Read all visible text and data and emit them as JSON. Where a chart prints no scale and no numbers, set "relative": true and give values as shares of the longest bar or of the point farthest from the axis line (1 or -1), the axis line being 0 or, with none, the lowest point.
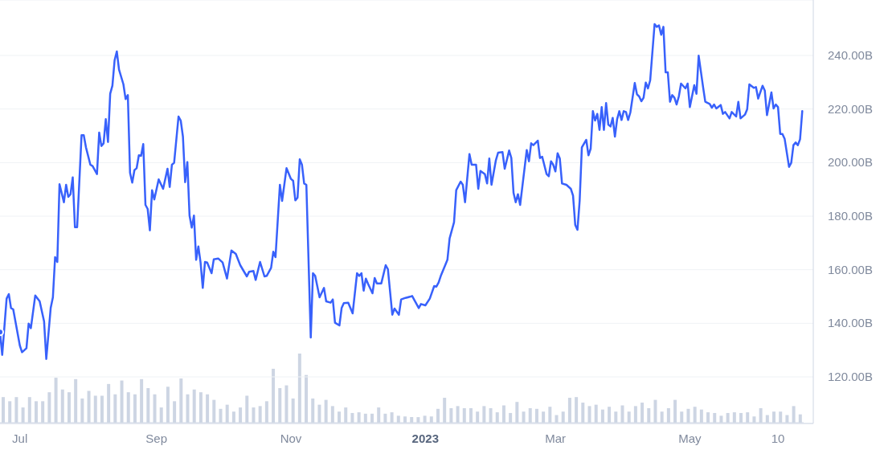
{
  "chart_data": [
    {
      "type": "line",
      "color": "#3861fb",
      "grid": "y",
      "marker": "none",
      "line_style": "solid",
      "xlim": [
        "2022-06-22",
        "2023-06-26"
      ],
      "ylim": [
        102.6,
        260.7
      ],
      "xticks": [
        {
          "value": "2022-07-01",
          "label": "Jul"
        },
        {
          "value": "2022-09-01",
          "label": "Sep"
        },
        {
          "value": "2022-11-01",
          "label": "Nov"
        },
        {
          "value": "2023-01-01",
          "label": "2023"
        },
        {
          "value": "2023-03-01",
          "label": "Mar"
        },
        {
          "value": "2023-05-01",
          "label": "May"
        },
        {
          "value": "2023-06-10",
          "label": "10"
        }
      ],
      "yticks": [
        {
          "value": 120,
          "label": "120.00B"
        },
        {
          "value": 140,
          "label": "140.00B"
        },
        {
          "value": 160,
          "label": "160.00B"
        },
        {
          "value": 180,
          "label": "180.00B"
        },
        {
          "value": 200,
          "label": "200.00B"
        },
        {
          "value": 220,
          "label": "220.00B"
        },
        {
          "value": 240,
          "label": "240.00B"
        }
      ],
      "x": [
        "2022-06-22",
        "2022-06-23",
        "2022-06-25",
        "2022-06-26",
        "2022-06-27",
        "2022-06-28",
        "2022-07-01",
        "2022-07-02",
        "2022-07-04",
        "2022-07-05",
        "2022-07-06",
        "2022-07-08",
        "2022-07-10",
        "2022-07-12",
        "2022-07-13",
        "2022-07-15",
        "2022-07-16",
        "2022-07-17",
        "2022-07-18",
        "2022-07-19",
        "2022-07-21",
        "2022-07-22",
        "2022-07-23",
        "2022-07-24",
        "2022-07-25",
        "2022-07-26",
        "2022-07-27",
        "2022-07-29",
        "2022-07-30",
        "2022-07-31",
        "2022-08-02",
        "2022-08-03",
        "2022-08-05",
        "2022-08-06",
        "2022-08-07",
        "2022-08-08",
        "2022-08-09",
        "2022-08-10",
        "2022-08-11",
        "2022-08-12",
        "2022-08-13",
        "2022-08-14",
        "2022-08-15",
        "2022-08-17",
        "2022-08-18",
        "2022-08-19",
        "2022-08-20",
        "2022-08-21",
        "2022-08-22",
        "2022-08-23",
        "2022-08-24",
        "2022-08-25",
        "2022-08-26",
        "2022-08-27",
        "2022-08-28",
        "2022-08-29",
        "2022-08-30",
        "2022-08-31",
        "2022-09-02",
        "2022-09-04",
        "2022-09-06",
        "2022-09-07",
        "2022-09-08",
        "2022-09-09",
        "2022-09-11",
        "2022-09-12",
        "2022-09-13",
        "2022-09-14",
        "2022-09-15",
        "2022-09-16",
        "2022-09-17",
        "2022-09-18",
        "2022-09-19",
        "2022-09-20",
        "2022-09-21",
        "2022-09-22",
        "2022-09-23",
        "2022-09-24",
        "2022-09-26",
        "2022-09-27",
        "2022-09-29",
        "2022-10-01",
        "2022-10-02",
        "2022-10-03",
        "2022-10-05",
        "2022-10-07",
        "2022-10-09",
        "2022-10-12",
        "2022-10-13",
        "2022-10-15",
        "2022-10-16",
        "2022-10-18",
        "2022-10-20",
        "2022-10-21",
        "2022-10-23",
        "2022-10-24",
        "2022-10-25",
        "2022-10-27",
        "2022-10-28",
        "2022-10-30",
        "2022-11-01",
        "2022-11-02",
        "2022-11-03",
        "2022-11-04",
        "2022-11-05",
        "2022-11-06",
        "2022-11-07",
        "2022-11-08",
        "2022-11-10",
        "2022-11-11",
        "2022-11-12",
        "2022-11-14",
        "2022-11-16",
        "2022-11-17",
        "2022-11-19",
        "2022-11-20",
        "2022-11-21",
        "2022-11-23",
        "2022-11-24",
        "2022-11-25",
        "2022-11-27",
        "2022-11-29",
        "2022-12-01",
        "2022-12-02",
        "2022-12-03",
        "2022-12-04",
        "2022-12-05",
        "2022-12-06",
        "2022-12-08",
        "2022-12-09",
        "2022-12-10",
        "2022-12-12",
        "2022-12-14",
        "2022-12-15",
        "2022-12-17",
        "2022-12-18",
        "2022-12-20",
        "2022-12-21",
        "2022-12-23",
        "2022-12-25",
        "2022-12-26",
        "2022-12-29",
        "2022-12-30",
        "2023-01-01",
        "2023-01-03",
        "2023-01-05",
        "2023-01-06",
        "2023-01-07",
        "2023-01-08",
        "2023-01-10",
        "2023-01-11",
        "2023-01-12",
        "2023-01-14",
        "2023-01-15",
        "2023-01-17",
        "2023-01-18",
        "2023-01-19",
        "2023-01-21",
        "2023-01-22",
        "2023-01-24",
        "2023-01-25",
        "2023-01-26",
        "2023-01-28",
        "2023-01-29",
        "2023-01-30",
        "2023-01-31",
        "2023-02-02",
        "2023-02-03",
        "2023-02-05",
        "2023-02-06",
        "2023-02-08",
        "2023-02-09",
        "2023-02-10",
        "2023-02-11",
        "2023-02-12",
        "2023-02-13",
        "2023-02-16",
        "2023-02-17",
        "2023-02-18",
        "2023-02-19",
        "2023-02-21",
        "2023-02-22",
        "2023-02-23",
        "2023-02-25",
        "2023-02-26",
        "2023-02-27",
        "2023-02-28",
        "2023-03-01",
        "2023-03-02",
        "2023-03-03",
        "2023-03-04",
        "2023-03-06",
        "2023-03-08",
        "2023-03-09",
        "2023-03-10",
        "2023-03-11",
        "2023-03-12",
        "2023-03-13",
        "2023-03-15",
        "2023-03-16",
        "2023-03-17",
        "2023-03-18",
        "2023-03-19",
        "2023-03-20",
        "2023-03-21",
        "2023-03-22",
        "2023-03-23",
        "2023-03-24",
        "2023-03-25",
        "2023-03-26",
        "2023-03-27",
        "2023-03-28",
        "2023-03-29",
        "2023-03-30",
        "2023-03-31",
        "2023-04-01",
        "2023-04-02",
        "2023-04-03",
        "2023-04-04",
        "2023-04-06",
        "2023-04-07",
        "2023-04-08",
        "2023-04-09",
        "2023-04-10",
        "2023-04-11",
        "2023-04-12",
        "2023-04-13",
        "2023-04-15",
        "2023-04-16",
        "2023-04-17",
        "2023-04-18",
        "2023-04-19",
        "2023-04-20",
        "2023-04-21",
        "2023-04-22",
        "2023-04-23",
        "2023-04-24",
        "2023-04-25",
        "2023-04-26",
        "2023-04-27",
        "2023-04-29",
        "2023-04-30",
        "2023-05-01",
        "2023-05-03",
        "2023-05-04",
        "2023-05-05",
        "2023-05-07",
        "2023-05-08",
        "2023-05-10",
        "2023-05-11",
        "2023-05-12",
        "2023-05-13",
        "2023-05-15",
        "2023-05-16",
        "2023-05-17",
        "2023-05-19",
        "2023-05-20",
        "2023-05-22",
        "2023-05-23",
        "2023-05-24",
        "2023-05-26",
        "2023-05-27",
        "2023-05-28",
        "2023-05-30",
        "2023-05-31",
        "2023-06-01",
        "2023-06-03",
        "2023-06-04",
        "2023-06-05",
        "2023-06-07",
        "2023-06-08",
        "2023-06-09",
        "2023-06-10",
        "2023-06-11",
        "2023-06-12",
        "2023-06-13",
        "2023-06-15",
        "2023-06-16",
        "2023-06-17",
        "2023-06-18",
        "2023-06-19",
        "2023-06-20",
        "2023-06-21"
      ],
      "values": [
        136.7,
        128.2,
        149.2,
        150.9,
        145.7,
        145.2,
        131.7,
        129.2,
        130.7,
        139.9,
        138.2,
        150.4,
        148.2,
        140.7,
        126.7,
        145.7,
        149.7,
        164.7,
        162.9,
        191.9,
        185.2,
        191.7,
        187.2,
        188.2,
        194.5,
        175.9,
        175.9,
        210.2,
        210.2,
        205.7,
        199.2,
        198.7,
        195.7,
        211.2,
        206.2,
        207.2,
        216.2,
        207.7,
        225.7,
        228.7,
        238.2,
        241.5,
        234.7,
        229.2,
        223.7,
        225.2,
        196.2,
        192.5,
        197.2,
        197.9,
        202.7,
        202.5,
        206.9,
        184.2,
        182.7,
        174.7,
        189.7,
        186.2,
        193.7,
        190.2,
        197.7,
        190.9,
        199.2,
        199.9,
        217.2,
        215.7,
        209.7,
        192.7,
        200.2,
        180.2,
        175.7,
        180.2,
        163.7,
        168.7,
        162.7,
        153.2,
        162.9,
        162.7,
        158.7,
        163.9,
        164.2,
        162.7,
        159.7,
        156.7,
        167.2,
        165.9,
        161.7,
        157.5,
        159.2,
        159.5,
        156.2,
        162.9,
        157.5,
        157.7,
        160.7,
        166.7,
        164.7,
        191.7,
        185.7,
        197.9,
        193.9,
        193.2,
        185.9,
        186.9,
        201.2,
        199.2,
        192.2,
        191.7,
        134.7,
        158.7,
        157.7,
        149.7,
        153.2,
        148.2,
        147.7,
        148.9,
        140.2,
        139.2,
        145.7,
        147.5,
        147.7,
        143.7,
        158.7,
        157.7,
        158.7,
        152.2,
        156.7,
        154.7,
        151.2,
        156.9,
        154.9,
        154.9,
        161.7,
        160.2,
        143.2,
        145.5,
        143.2,
        148.9,
        149.5,
        149.9,
        150.2,
        145.7,
        147.2,
        146.7,
        149.2,
        153.9,
        153.7,
        155.2,
        157.7,
        161.7,
        163.7,
        171.7,
        177.7,
        189.7,
        192.9,
        191.7,
        185.2,
        203.2,
        199.2,
        199.2,
        190.2,
        196.9,
        195.7,
        192.2,
        201.5,
        191.7,
        200.9,
        203.7,
        203.9,
        197.7,
        204.5,
        201.7,
        188.7,
        185.2,
        188.2,
        184.2,
        204.7,
        200.5,
        207.2,
        206.5,
        208.2,
        201.7,
        202.2,
        195.7,
        194.9,
        200.5,
        199.2,
        196.7,
        203.5,
        201.5,
        192.2,
        191.7,
        190.2,
        187.7,
        176.7,
        174.9,
        185.7,
        205.7,
        208.5,
        202.7,
        205.2,
        219.2,
        215.7,
        218.2,
        212.2,
        220.7,
        212.2,
        222.2,
        214.2,
        213.5,
        216.7,
        209.7,
        216.2,
        219.2,
        215.9,
        219.2,
        218.9,
        215.9,
        218.7,
        229.7,
        225.5,
        224.7,
        222.9,
        224.2,
        229.9,
        227.7,
        230.7,
        251.7,
        250.7,
        251.2,
        247.7,
        250.7,
        233.7,
        233.7,
        222.7,
        225.2,
        224.2,
        221.7,
        224.7,
        229.5,
        227.7,
        229.5,
        220.7,
        228.9,
        225.7,
        239.9,
        228.2,
        222.7,
        221.9,
        220.5,
        221.7,
        220.2,
        221.5,
        218.2,
        218.9,
        216.5,
        218.9,
        217.2,
        222.7,
        216.5,
        217.9,
        219.9,
        229.2,
        227.9,
        228.2,
        223.9,
        228.7,
        226.9,
        217.7,
        226.2,
        220.2,
        221.7,
        220.7,
        210.7,
        210.7,
        208.9,
        198.4,
        199.9,
        206.5,
        207.5,
        206.5,
        208.7,
        219.2
      ]
    },
    {
      "type": "bar",
      "relative": true,
      "color": "#cdd5e3",
      "categories": [
        null,
        null,
        null,
        null,
        null,
        null,
        null,
        null,
        null,
        null,
        null,
        null,
        null,
        null,
        null,
        null,
        null,
        null,
        null,
        null,
        null,
        null,
        null,
        null,
        null,
        null,
        null,
        null,
        null,
        null,
        null,
        null,
        null,
        null,
        null,
        null,
        null,
        null,
        null,
        null,
        null,
        null,
        null,
        null,
        null,
        null,
        null,
        null,
        null,
        null,
        null,
        null,
        null,
        null,
        null,
        null,
        null,
        null,
        null,
        null,
        null,
        null,
        null,
        null,
        null,
        null,
        null,
        null,
        null,
        null,
        null,
        null,
        null,
        null,
        null,
        null,
        null,
        null,
        null,
        null,
        null,
        null,
        null,
        null,
        null,
        null,
        null,
        null,
        null,
        null,
        null,
        null,
        null,
        null,
        null,
        null,
        null,
        null,
        null,
        null,
        null,
        null,
        null,
        null,
        null,
        null,
        null,
        null,
        null,
        null,
        null,
        null,
        null,
        null,
        null,
        null,
        null,
        null,
        null,
        null,
        null,
        null
      ],
      "values": [
        0.37,
        0.31,
        0.37,
        0.22,
        0.37,
        0.31,
        0.31,
        0.44,
        0.65,
        0.48,
        0.44,
        0.63,
        0.35,
        0.46,
        0.39,
        0.39,
        0.56,
        0.41,
        0.61,
        0.44,
        0.41,
        0.63,
        0.5,
        0.41,
        0.22,
        0.52,
        0.31,
        0.64,
        0.41,
        0.48,
        0.44,
        0.41,
        0.33,
        0.2,
        0.26,
        0.16,
        0.22,
        0.39,
        0.22,
        0.24,
        0.31,
        0.78,
        0.5,
        0.54,
        0.35,
        1,
        0.69,
        0.35,
        0.26,
        0.33,
        0.24,
        0.16,
        0.22,
        0.14,
        0.15,
        0.13,
        0.13,
        0.22,
        0.13,
        0.15,
        0.1,
        0.09,
        0.08,
        0.08,
        0.1,
        0.09,
        0.2,
        0.36,
        0.21,
        0.24,
        0.21,
        0.21,
        0.16,
        0.24,
        0.21,
        0.15,
        0.25,
        0.14,
        0.3,
        0.16,
        0.21,
        0.2,
        0.16,
        0.23,
        0.11,
        0.16,
        0.36,
        0.37,
        0.29,
        0.24,
        0.26,
        0.19,
        0.23,
        0.16,
        0.25,
        0.16,
        0.24,
        0.29,
        0.21,
        0.33,
        0.16,
        0.21,
        0.33,
        0.16,
        0.2,
        0.23,
        0.19,
        0.15,
        0.14,
        0.1,
        0.14,
        0.15,
        0.14,
        0.15,
        0.09,
        0.21,
        0.11,
        0.16,
        0.16,
        0.11,
        0.24,
        0.12
      ]
    }
  ]
}
